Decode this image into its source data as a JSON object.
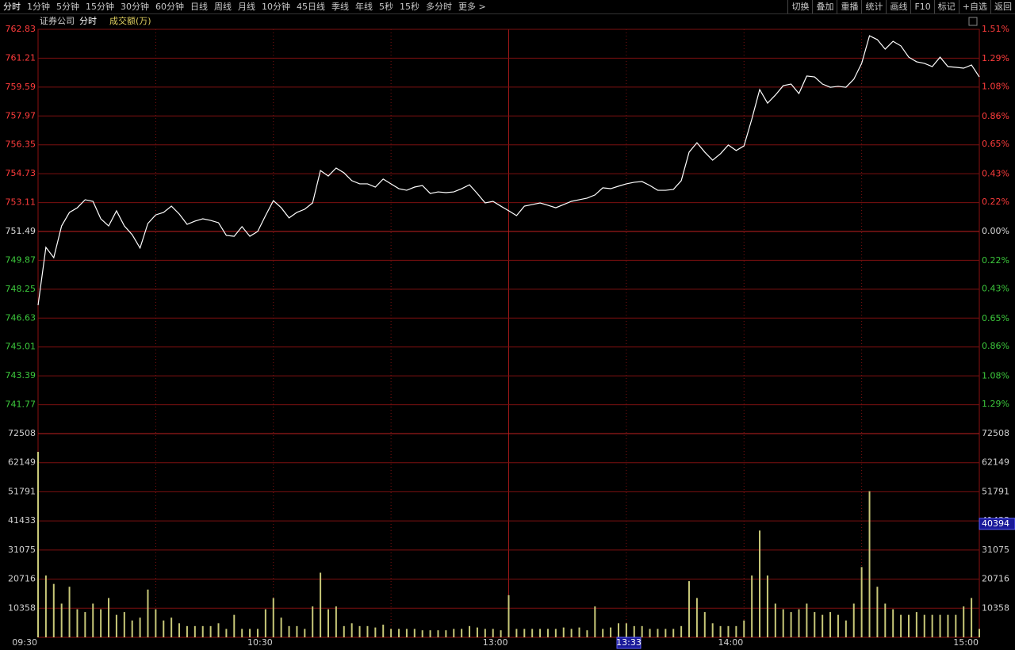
{
  "toolbar": {
    "left": [
      "分时",
      "1分钟",
      "5分钟",
      "15分钟",
      "30分钟",
      "60分钟",
      "日线",
      "周线",
      "月线",
      "10分钟",
      "45日线",
      "季线",
      "年线",
      "5秒",
      "15秒",
      "多分时",
      "更多 >"
    ],
    "right": [
      "切换",
      "叠加",
      "重播",
      "统计",
      "画线",
      "F10",
      "标记",
      "+自选",
      "返回"
    ]
  },
  "header": {
    "name": "证券公司",
    "mode": "分时"
  },
  "cursor": {
    "time": "13:33",
    "value": 40394
  },
  "colors": {
    "up": "#ff3c3c",
    "down": "#3cc83c",
    "flat": "#d8d8d8"
  },
  "chart_data": [
    {
      "type": "line",
      "color": "#ffffff",
      "grid": true,
      "categories": [
        "09:30",
        null,
        null,
        null,
        null,
        null,
        null,
        null,
        null,
        null,
        null,
        null,
        null,
        null,
        null,
        null,
        null,
        null,
        null,
        null,
        null,
        null,
        null,
        null,
        null,
        null,
        null,
        null,
        null,
        null,
        "10:30",
        null,
        null,
        null,
        null,
        null,
        null,
        null,
        null,
        null,
        null,
        null,
        null,
        null,
        null,
        null,
        null,
        null,
        null,
        null,
        null,
        null,
        null,
        null,
        null,
        null,
        null,
        null,
        null,
        null,
        "13:00",
        null,
        null,
        null,
        null,
        null,
        null,
        null,
        null,
        null,
        null,
        null,
        null,
        null,
        null,
        null,
        null,
        null,
        null,
        null,
        null,
        null,
        null,
        null,
        null,
        null,
        null,
        null,
        null,
        null,
        "14:00",
        null,
        null,
        null,
        null,
        null,
        null,
        null,
        null,
        null,
        null,
        null,
        null,
        null,
        null,
        null,
        null,
        null,
        null,
        null,
        null,
        null,
        null,
        null,
        null,
        null,
        null,
        null,
        null,
        null,
        "15:00"
      ],
      "values": [
        747.35,
        750.6,
        750.02,
        751.8,
        752.56,
        752.82,
        753.27,
        753.18,
        752.2,
        751.8,
        752.65,
        751.8,
        751.31,
        750.56,
        751.94,
        752.42,
        752.56,
        752.91,
        752.47,
        751.89,
        752.07,
        752.2,
        752.11,
        751.98,
        751.27,
        751.22,
        751.76,
        751.22,
        751.49,
        752.38,
        753.22,
        752.82,
        752.25,
        752.56,
        752.74,
        753.09,
        754.91,
        754.6,
        755.05,
        754.78,
        754.34,
        754.16,
        754.16,
        753.98,
        754.43,
        754.16,
        753.89,
        753.8,
        753.98,
        754.07,
        753.62,
        753.71,
        753.67,
        753.71,
        753.89,
        754.11,
        753.62,
        753.09,
        753.18,
        752.91,
        752.65,
        752.38,
        752.91,
        753.0,
        753.09,
        752.96,
        752.82,
        753.0,
        753.18,
        753.27,
        753.36,
        753.54,
        753.94,
        753.89,
        754.03,
        754.16,
        754.25,
        754.29,
        754.07,
        753.8,
        753.8,
        753.85,
        754.34,
        755.94,
        756.47,
        755.94,
        755.49,
        755.85,
        756.34,
        756.03,
        756.29,
        757.8,
        759.45,
        758.69,
        759.14,
        759.67,
        759.76,
        759.23,
        760.21,
        760.16,
        759.76,
        759.58,
        759.63,
        759.58,
        760.03,
        760.92,
        762.47,
        762.25,
        761.72,
        762.16,
        761.9,
        761.27,
        761.01,
        760.92,
        760.74,
        761.27,
        760.74,
        760.7,
        760.65,
        760.83,
        760.16
      ],
      "ylim": [
        740.15,
        762.83
      ],
      "yticks": [
        762.83,
        761.21,
        759.59,
        757.97,
        756.35,
        754.73,
        753.11,
        751.49,
        749.87,
        748.25,
        746.63,
        745.01,
        743.39,
        741.77
      ],
      "y2lim": [
        -1.51,
        1.51
      ],
      "y2ticks": [
        {
          "value": 1.51,
          "label": "1.51%"
        },
        {
          "value": 1.29,
          "label": "1.29%"
        },
        {
          "value": 1.08,
          "label": "1.08%"
        },
        {
          "value": 0.86,
          "label": "0.86%"
        },
        {
          "value": 0.65,
          "label": "0.65%"
        },
        {
          "value": 0.43,
          "label": "0.43%"
        },
        {
          "value": 0.22,
          "label": "0.22%"
        },
        {
          "value": 0,
          "label": "0.00%"
        },
        {
          "value": -0.22,
          "label": "0.22%"
        },
        {
          "value": -0.43,
          "label": "0.43%"
        },
        {
          "value": -0.65,
          "label": "0.65%"
        },
        {
          "value": -0.86,
          "label": "0.86%"
        },
        {
          "value": -1.08,
          "label": "1.08%"
        },
        {
          "value": -1.29,
          "label": "1.29%"
        }
      ]
    },
    {
      "type": "bar",
      "title": "成交额(万)",
      "color": "#c8c878",
      "grid": true,
      "values": [
        66000,
        22000,
        19000,
        12000,
        18000,
        10000,
        9000,
        12000,
        10000,
        14000,
        8000,
        9000,
        6000,
        7000,
        17000,
        10000,
        6000,
        7000,
        5000,
        4000,
        4000,
        4000,
        4000,
        5000,
        3000,
        8000,
        3000,
        3000,
        3000,
        10000,
        14000,
        7000,
        4000,
        4000,
        3000,
        11000,
        23000,
        10000,
        11000,
        4000,
        5000,
        4000,
        4000,
        3500,
        4500,
        3000,
        3000,
        3000,
        3000,
        2500,
        2500,
        2500,
        2500,
        3000,
        3000,
        4000,
        3500,
        3000,
        3000,
        2500,
        15000,
        3000,
        3000,
        3000,
        3000,
        3000,
        3000,
        3500,
        3000,
        3500,
        2500,
        11000,
        3000,
        3500,
        5000,
        5000,
        4000,
        4000,
        3000,
        3000,
        3000,
        3000,
        4000,
        20000,
        14000,
        9000,
        5000,
        4000,
        4000,
        4000,
        6000,
        22000,
        38000,
        22000,
        12000,
        10000,
        9000,
        10000,
        12000,
        9000,
        8000,
        9000,
        8000,
        6000,
        12000,
        25000,
        52000,
        18000,
        12000,
        10000,
        8000,
        8000,
        9000,
        8000,
        8000,
        8000,
        8000,
        8000,
        11000,
        14000,
        3000
      ],
      "ylim": [
        0,
        72508
      ],
      "yticks": [
        72508,
        62149,
        51791,
        41433,
        31075,
        20716,
        10358
      ]
    }
  ]
}
